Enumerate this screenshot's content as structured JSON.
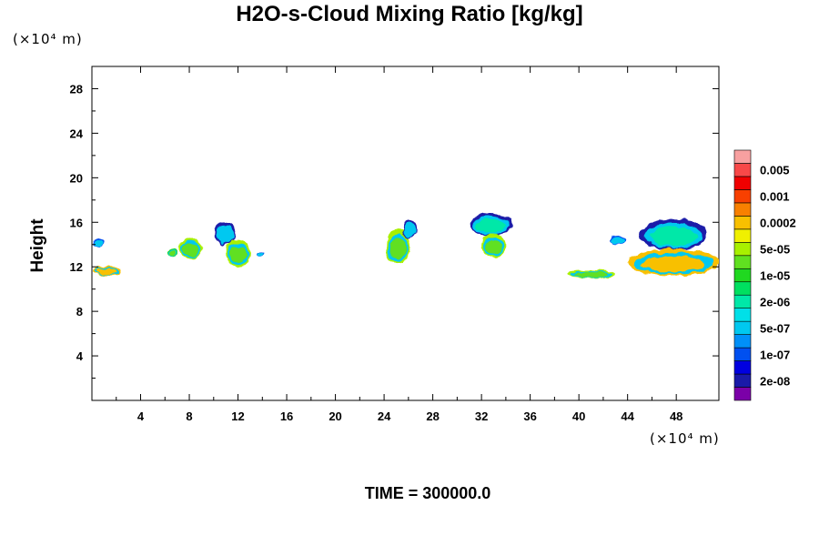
{
  "chart_data": {
    "type": "heatmap",
    "title": "H2O-s-Cloud Mixing Ratio [kg/kg]",
    "ylabel": "Height",
    "y_unit": "(×10⁴ m)",
    "x_unit": "(×10⁴ m)",
    "footer": "TIME = 300000.0",
    "xlim": [
      0,
      51.5
    ],
    "ylim": [
      0,
      30
    ],
    "x_ticks": [
      4,
      8,
      12,
      16,
      20,
      24,
      28,
      32,
      36,
      40,
      44,
      48
    ],
    "x_tick_labels": [
      "4",
      "8",
      "12",
      "16",
      "20",
      "24",
      "28",
      "32",
      "36",
      "40",
      "44",
      "48"
    ],
    "y_ticks": [
      4,
      8,
      12,
      16,
      20,
      24,
      28
    ],
    "y_tick_labels": [
      "4",
      "8",
      "12",
      "16",
      "20",
      "24",
      "28"
    ],
    "colorbar": {
      "colors": [
        "#7b00a8",
        "#1a1aa8",
        "#0000e0",
        "#0050f0",
        "#0090f8",
        "#00c8f0",
        "#00e0e8",
        "#00e8a8",
        "#00e060",
        "#20d820",
        "#60e020",
        "#a8f000",
        "#f0f000",
        "#f8c000",
        "#f88000",
        "#f84000",
        "#f00000",
        "#f84848",
        "#f8a0a0"
      ],
      "labels": [
        "2e-08",
        "1e-07",
        "5e-07",
        "2e-06",
        "1e-05",
        "5e-05",
        "0.0002",
        "0.001",
        "0.005"
      ]
    },
    "regions": [
      {
        "x": [
          0.0,
          1.0
        ],
        "y": [
          13.7,
          14.6
        ],
        "color": "#00c8f0",
        "max": "1e-07"
      },
      {
        "x": [
          0.0,
          2.4
        ],
        "y": [
          11.2,
          12.1
        ],
        "color": "#f8c000",
        "max": "0.0002"
      },
      {
        "x": [
          6.2,
          7.1
        ],
        "y": [
          12.9,
          13.6
        ],
        "color": "#60e020",
        "max": "1e-05"
      },
      {
        "x": [
          7.2,
          9.0
        ],
        "y": [
          12.7,
          14.6
        ],
        "color": "#60e020",
        "max": "5e-05"
      },
      {
        "x": [
          10.0,
          11.8
        ],
        "y": [
          14.0,
          16.0
        ],
        "color": "#00c8f0",
        "max": "2e-08"
      },
      {
        "x": [
          11.0,
          13.0
        ],
        "y": [
          12.0,
          14.5
        ],
        "color": "#60e020",
        "max": "5e-05"
      },
      {
        "x": [
          13.6,
          14.2
        ],
        "y": [
          12.8,
          13.3
        ],
        "color": "#00c8f0",
        "max": "1e-07"
      },
      {
        "x": [
          24.2,
          26.2
        ],
        "y": [
          12.3,
          15.4
        ],
        "color": "#60e020",
        "max": "5e-05"
      },
      {
        "x": [
          25.5,
          26.7
        ],
        "y": [
          14.6,
          16.2
        ],
        "color": "#00c8f0",
        "max": "2e-08"
      },
      {
        "x": [
          31.0,
          34.5
        ],
        "y": [
          14.8,
          16.8
        ],
        "color": "#00e8a8",
        "max": "2e-08"
      },
      {
        "x": [
          32.0,
          34.0
        ],
        "y": [
          12.8,
          15.0
        ],
        "color": "#60e020",
        "max": "5e-05"
      },
      {
        "x": [
          42.5,
          43.8
        ],
        "y": [
          14.0,
          14.8
        ],
        "color": "#00c8f0",
        "max": "1e-07"
      },
      {
        "x": [
          45.0,
          50.5
        ],
        "y": [
          13.5,
          16.3
        ],
        "color": "#00e8a8",
        "max": "2e-08"
      },
      {
        "x": [
          44.0,
          51.5
        ],
        "y": [
          11.2,
          13.6
        ],
        "color": "#f8c000",
        "max": "0.0002"
      },
      {
        "x": [
          39.0,
          43.0
        ],
        "y": [
          11.0,
          11.7
        ],
        "color": "#60e020",
        "max": "5e-05"
      }
    ]
  }
}
